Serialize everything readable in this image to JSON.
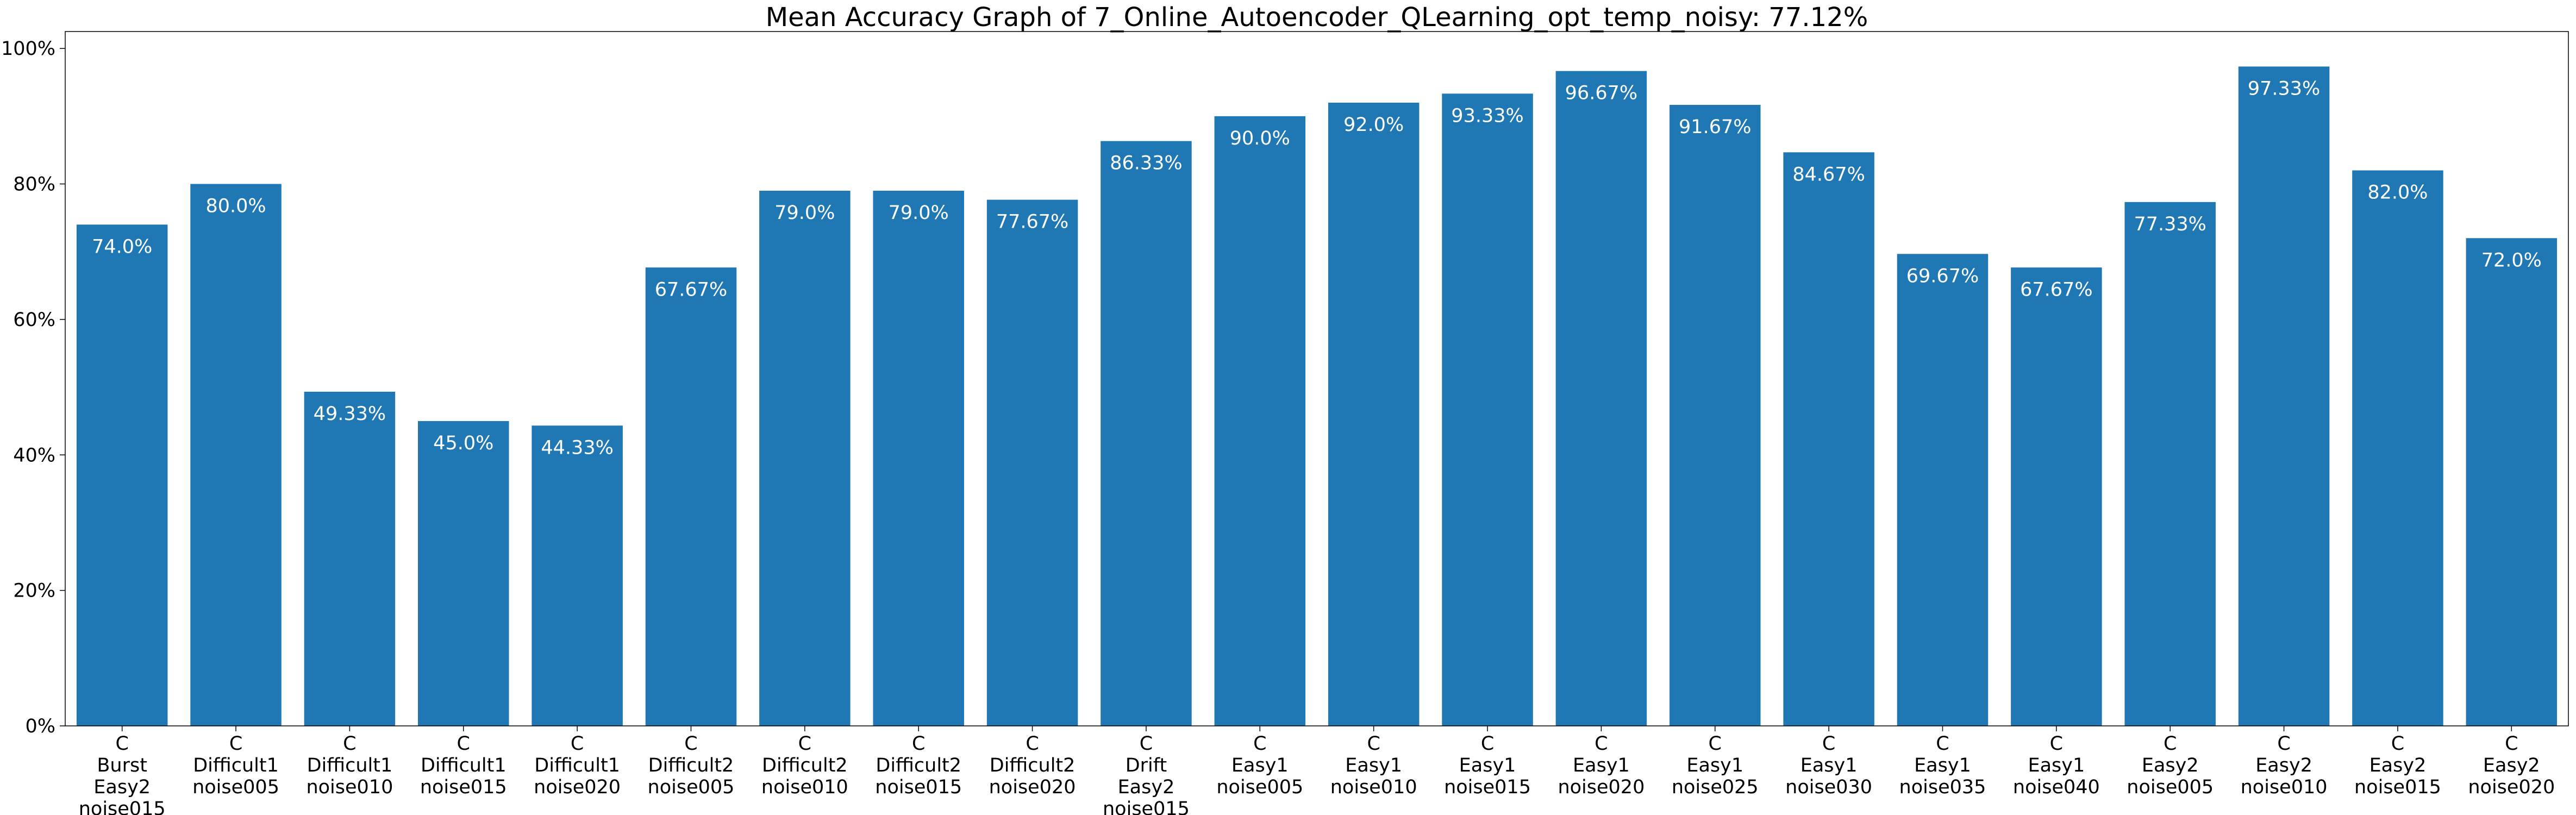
{
  "chart_data": {
    "type": "bar",
    "title": "Mean Accuracy Graph of 7_Online_Autoencoder_QLearning_opt_temp_noisy: 77.12%",
    "xlabel": "",
    "ylabel": "",
    "ylim": [
      0,
      100
    ],
    "yticks": [
      0,
      20,
      40,
      60,
      80,
      100
    ],
    "ytick_labels": [
      "0%",
      "20%",
      "40%",
      "60%",
      "80%",
      "100%"
    ],
    "grid": false,
    "bar_color": "#1f77b4",
    "categories": [
      [
        "C",
        "Burst",
        "Easy2",
        "noise015"
      ],
      [
        "C",
        "Difficult1",
        "noise005"
      ],
      [
        "C",
        "Difficult1",
        "noise010"
      ],
      [
        "C",
        "Difficult1",
        "noise015"
      ],
      [
        "C",
        "Difficult1",
        "noise020"
      ],
      [
        "C",
        "Difficult2",
        "noise005"
      ],
      [
        "C",
        "Difficult2",
        "noise010"
      ],
      [
        "C",
        "Difficult2",
        "noise015"
      ],
      [
        "C",
        "Difficult2",
        "noise020"
      ],
      [
        "C",
        "Drift",
        "Easy2",
        "noise015"
      ],
      [
        "C",
        "Easy1",
        "noise005"
      ],
      [
        "C",
        "Easy1",
        "noise010"
      ],
      [
        "C",
        "Easy1",
        "noise015"
      ],
      [
        "C",
        "Easy1",
        "noise020"
      ],
      [
        "C",
        "Easy1",
        "noise025"
      ],
      [
        "C",
        "Easy1",
        "noise030"
      ],
      [
        "C",
        "Easy1",
        "noise035"
      ],
      [
        "C",
        "Easy1",
        "noise040"
      ],
      [
        "C",
        "Easy2",
        "noise005"
      ],
      [
        "C",
        "Easy2",
        "noise010"
      ],
      [
        "C",
        "Easy2",
        "noise015"
      ],
      [
        "C",
        "Easy2",
        "noise020"
      ]
    ],
    "values": [
      74.0,
      80.0,
      49.33,
      45.0,
      44.33,
      67.67,
      79.0,
      79.0,
      77.67,
      86.33,
      90.0,
      92.0,
      93.33,
      96.67,
      91.67,
      84.67,
      69.67,
      67.67,
      77.33,
      97.33,
      82.0,
      72.0
    ],
    "value_labels": [
      "74.0%",
      "80.0%",
      "49.33%",
      "45.0%",
      "44.33%",
      "67.67%",
      "79.0%",
      "79.0%",
      "77.67%",
      "86.33%",
      "90.0%",
      "92.0%",
      "93.33%",
      "96.67%",
      "91.67%",
      "84.67%",
      "69.67%",
      "67.67%",
      "77.33%",
      "97.33%",
      "82.0%",
      "72.0%"
    ]
  }
}
